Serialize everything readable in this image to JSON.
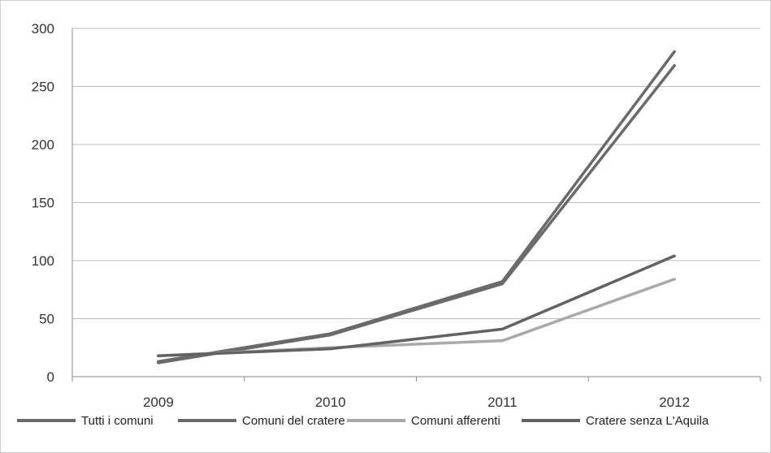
{
  "chart_data": {
    "type": "line",
    "categories": [
      "2009",
      "2010",
      "2011",
      "2012"
    ],
    "y_ticks": [
      "0",
      "50",
      "100",
      "150",
      "200",
      "250",
      "300"
    ],
    "ylim": [
      0,
      300
    ],
    "grid": true,
    "legend_position": "bottom",
    "series": [
      {
        "name": "Tutti i comuni",
        "values": [
          13,
          37,
          82,
          280
        ],
        "color": "#6a6a6a"
      },
      {
        "name": "Comuni del cratere",
        "values": [
          12,
          36,
          80,
          268
        ],
        "color": "#6a6a6a"
      },
      {
        "name": "Comuni afferenti",
        "values": [
          18,
          25,
          31,
          84
        ],
        "color": "#a9a9a9"
      },
      {
        "name": "Cratere senza L'Aquila",
        "values": [
          18,
          24,
          41,
          104
        ],
        "color": "#626262"
      }
    ]
  }
}
